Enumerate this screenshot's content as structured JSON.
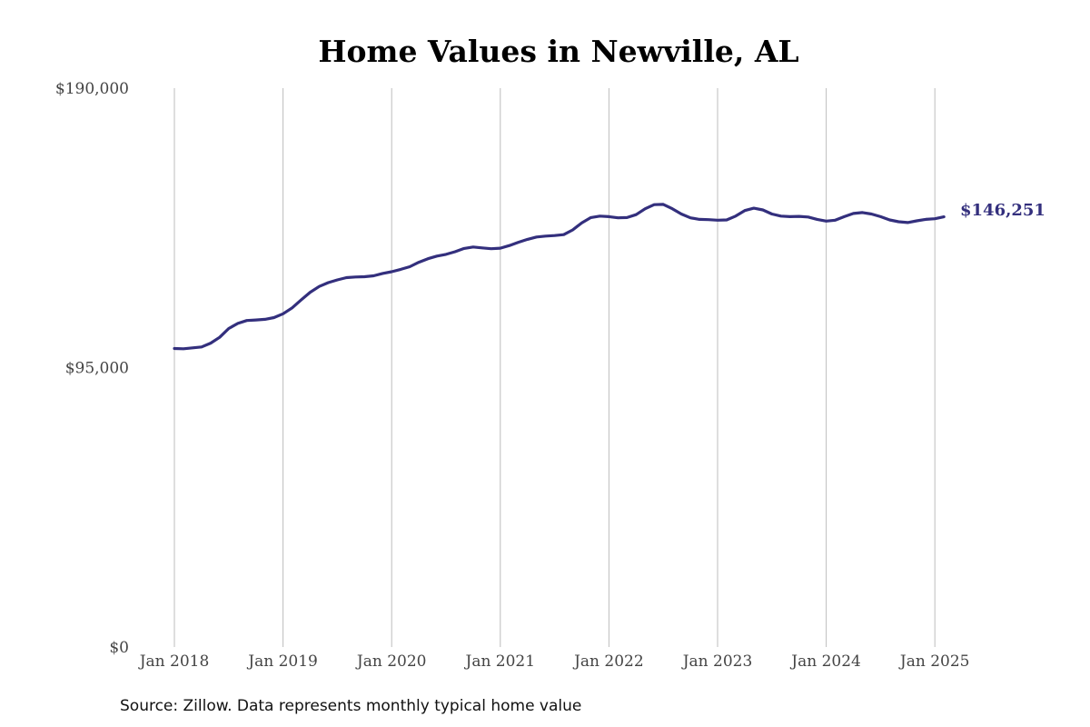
{
  "chart_data": {
    "type": "line",
    "title": "Home Values in Newville, AL",
    "source_note": "Source: Zillow. Data represents monthly typical home value",
    "xlabel": "",
    "ylabel": "",
    "ylim": [
      0,
      190000
    ],
    "y_ticks": [
      {
        "value": 0,
        "label": "$0"
      },
      {
        "value": 95000,
        "label": "$95,000"
      },
      {
        "value": 190000,
        "label": "$190,000"
      }
    ],
    "x_ticks": [
      {
        "value": "2018-01",
        "label": "Jan 2018"
      },
      {
        "value": "2019-01",
        "label": "Jan 2019"
      },
      {
        "value": "2020-01",
        "label": "Jan 2020"
      },
      {
        "value": "2021-01",
        "label": "Jan 2021"
      },
      {
        "value": "2022-01",
        "label": "Jan 2022"
      },
      {
        "value": "2023-01",
        "label": "Jan 2023"
      },
      {
        "value": "2024-01",
        "label": "Jan 2024"
      },
      {
        "value": "2025-01",
        "label": "Jan 2025"
      }
    ],
    "grid": {
      "vertical": true,
      "horizontal": false
    },
    "end_label": "$146,251",
    "series": [
      {
        "color": "#332f7d",
        "points": [
          [
            "2018-01",
            101500
          ],
          [
            "2018-02",
            101400
          ],
          [
            "2018-03",
            101700
          ],
          [
            "2018-04",
            102000
          ],
          [
            "2018-05",
            103300
          ],
          [
            "2018-06",
            105300
          ],
          [
            "2018-07",
            108300
          ],
          [
            "2018-08",
            110000
          ],
          [
            "2018-09",
            111000
          ],
          [
            "2018-10",
            111200
          ],
          [
            "2018-11",
            111400
          ],
          [
            "2018-12",
            112000
          ],
          [
            "2019-01",
            113300
          ],
          [
            "2019-02",
            115300
          ],
          [
            "2019-03",
            118000
          ],
          [
            "2019-04",
            120600
          ],
          [
            "2019-05",
            122600
          ],
          [
            "2019-06",
            123900
          ],
          [
            "2019-07",
            124800
          ],
          [
            "2019-08",
            125600
          ],
          [
            "2019-09",
            125800
          ],
          [
            "2019-10",
            125900
          ],
          [
            "2019-11",
            126200
          ],
          [
            "2019-12",
            127000
          ],
          [
            "2020-01",
            127600
          ],
          [
            "2020-02",
            128400
          ],
          [
            "2020-03",
            129300
          ],
          [
            "2020-04",
            130800
          ],
          [
            "2020-05",
            132000
          ],
          [
            "2020-06",
            132900
          ],
          [
            "2020-07",
            133500
          ],
          [
            "2020-08",
            134400
          ],
          [
            "2020-09",
            135500
          ],
          [
            "2020-10",
            136000
          ],
          [
            "2020-11",
            135700
          ],
          [
            "2020-12",
            135400
          ],
          [
            "2021-01",
            135600
          ],
          [
            "2021-02",
            136500
          ],
          [
            "2021-03",
            137600
          ],
          [
            "2021-04",
            138600
          ],
          [
            "2021-05",
            139400
          ],
          [
            "2021-06",
            139700
          ],
          [
            "2021-07",
            139900
          ],
          [
            "2021-08",
            140200
          ],
          [
            "2021-09",
            141800
          ],
          [
            "2021-10",
            144200
          ],
          [
            "2021-11",
            146000
          ],
          [
            "2021-12",
            146500
          ],
          [
            "2022-01",
            146300
          ],
          [
            "2022-02",
            145900
          ],
          [
            "2022-03",
            146000
          ],
          [
            "2022-04",
            147000
          ],
          [
            "2022-05",
            149000
          ],
          [
            "2022-06",
            150400
          ],
          [
            "2022-07",
            150500
          ],
          [
            "2022-08",
            149000
          ],
          [
            "2022-09",
            147200
          ],
          [
            "2022-10",
            145900
          ],
          [
            "2022-11",
            145400
          ],
          [
            "2022-12",
            145300
          ],
          [
            "2023-01",
            145100
          ],
          [
            "2023-02",
            145200
          ],
          [
            "2023-03",
            146500
          ],
          [
            "2023-04",
            148400
          ],
          [
            "2023-05",
            149200
          ],
          [
            "2023-06",
            148600
          ],
          [
            "2023-07",
            147200
          ],
          [
            "2023-08",
            146500
          ],
          [
            "2023-09",
            146300
          ],
          [
            "2023-10",
            146400
          ],
          [
            "2023-11",
            146200
          ],
          [
            "2023-12",
            145400
          ],
          [
            "2024-01",
            144800
          ],
          [
            "2024-02",
            145100
          ],
          [
            "2024-03",
            146300
          ],
          [
            "2024-04",
            147400
          ],
          [
            "2024-05",
            147700
          ],
          [
            "2024-06",
            147200
          ],
          [
            "2024-07",
            146300
          ],
          [
            "2024-08",
            145200
          ],
          [
            "2024-09",
            144600
          ],
          [
            "2024-10",
            144300
          ],
          [
            "2024-11",
            144900
          ],
          [
            "2024-12",
            145400
          ],
          [
            "2025-01",
            145600
          ],
          [
            "2025-02",
            146251
          ]
        ]
      }
    ]
  }
}
